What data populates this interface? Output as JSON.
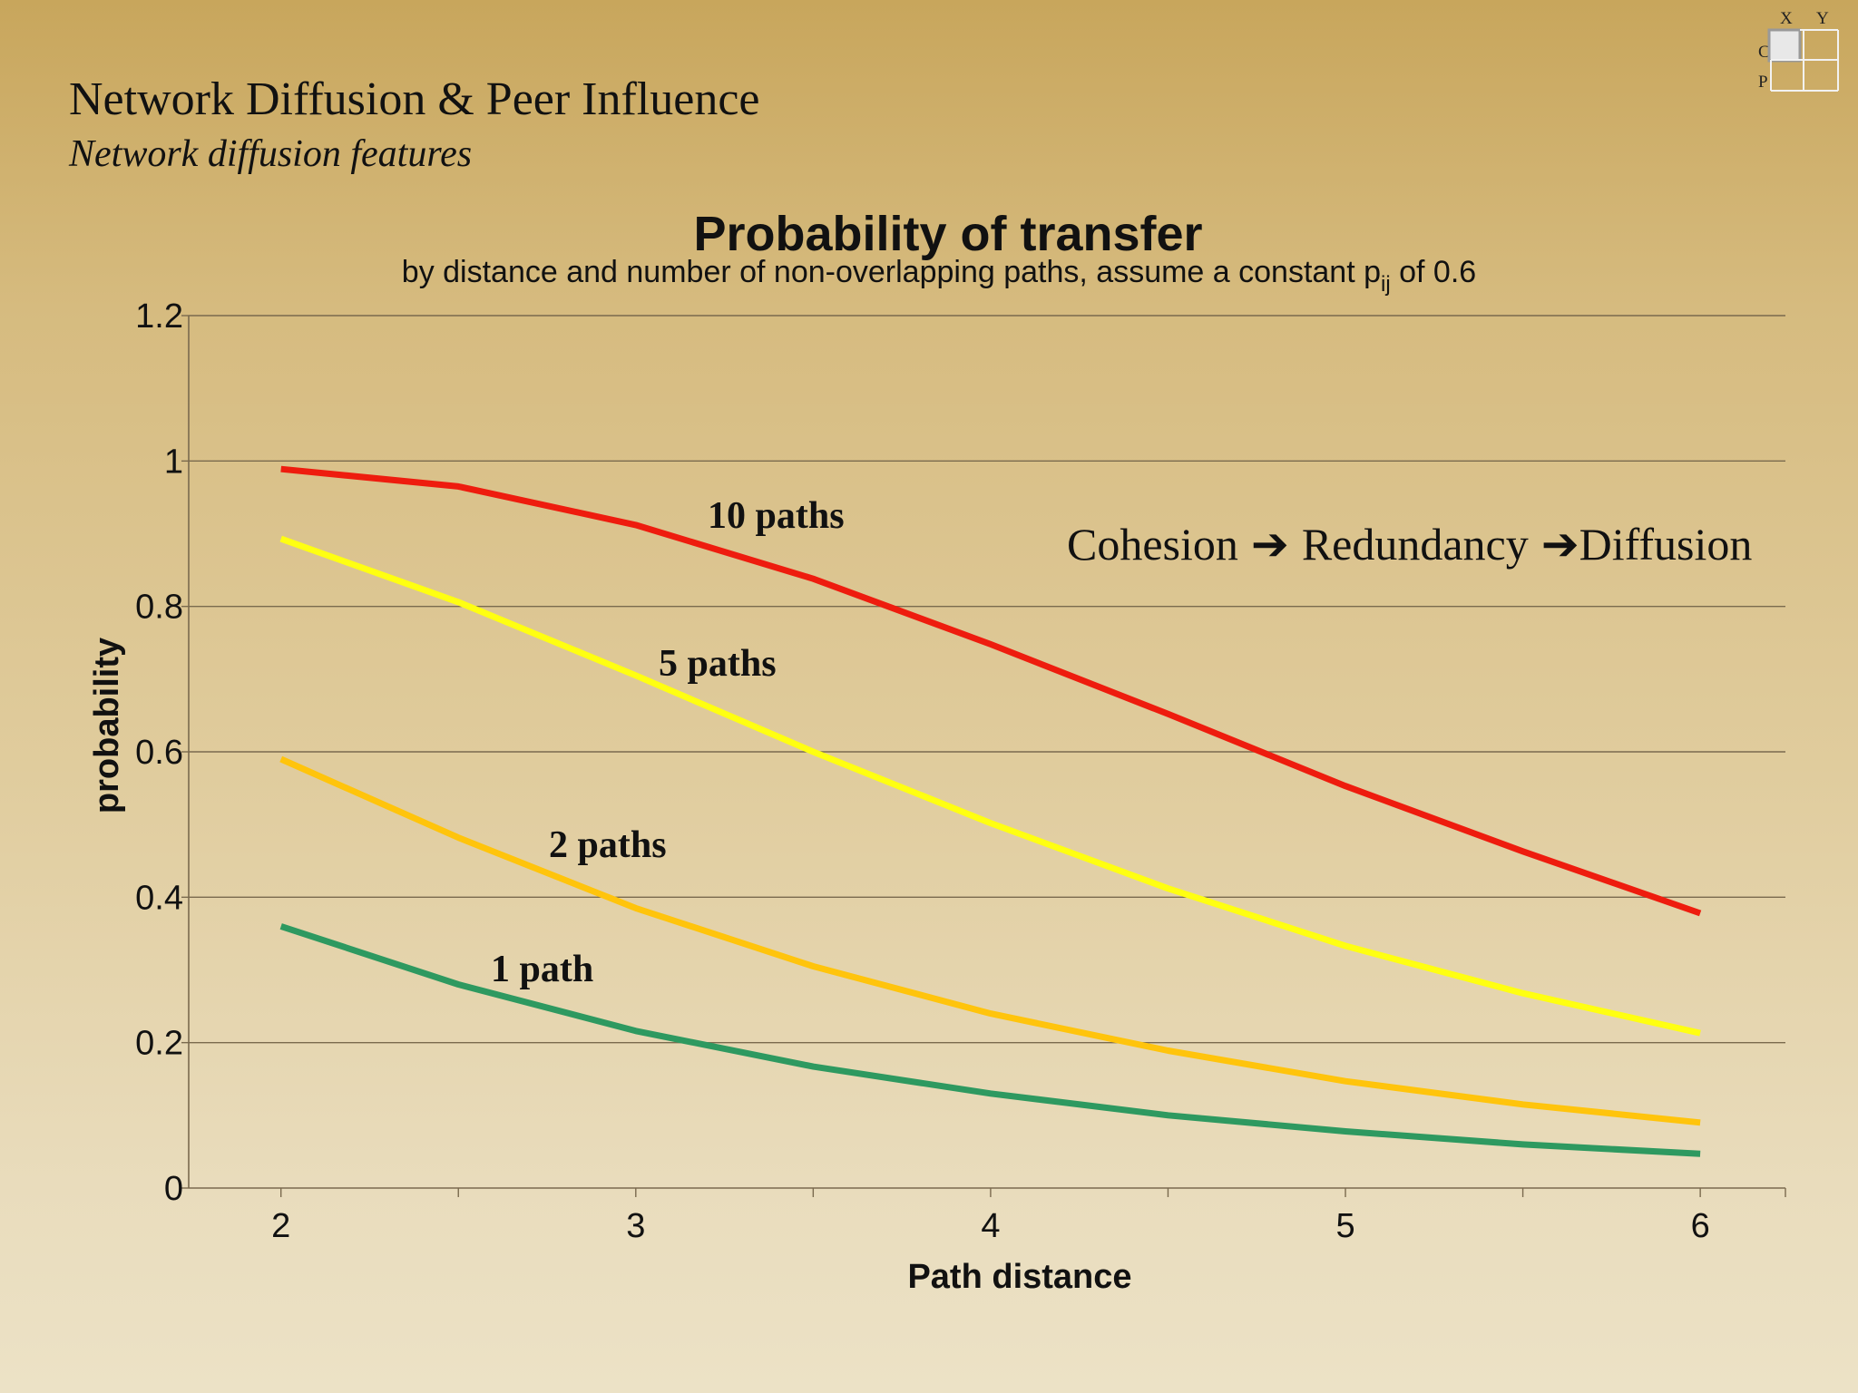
{
  "slide": {
    "title": "Network Diffusion & Peer Influence",
    "subtitle": "Network diffusion features"
  },
  "logo": {
    "x": "X",
    "y": "Y",
    "c": "C",
    "p": "P"
  },
  "annotation": {
    "cohesion": "Cohesion",
    "redundancy": "Redundancy",
    "diffusion": "Diffusion",
    "arrow": "➔"
  },
  "chart_data": {
    "type": "line",
    "title": "Probability of transfer",
    "subtitle_before": "by distance and number of non-overlapping paths, assume a constant p",
    "subtitle_subscript": "ij",
    "subtitle_after": " of 0.6",
    "xlabel": "Path distance",
    "ylabel": "probability",
    "xlim": [
      1.74,
      6.24
    ],
    "ylim": [
      0,
      1.2
    ],
    "x_ticks": [
      2,
      3,
      4,
      5,
      6
    ],
    "y_ticks": [
      0,
      0.2,
      0.4,
      0.6,
      0.8,
      1,
      1.2
    ],
    "y_tick_labels": [
      "0",
      "0.2",
      "0.4",
      "0.6",
      "0.8",
      "1",
      "1.2"
    ],
    "x": [
      2,
      2.5,
      3,
      3.5,
      4,
      4.5,
      5,
      5.5,
      6
    ],
    "grid": true,
    "series": [
      {
        "name": "10 paths",
        "color": "#ee1c0e",
        "values": [
          0.989,
          0.965,
          0.912,
          0.838,
          0.748,
          0.652,
          0.553,
          0.463,
          0.378
        ]
      },
      {
        "name": "5 paths",
        "color": "#ffff11",
        "values": [
          0.893,
          0.806,
          0.705,
          0.6,
          0.502,
          0.412,
          0.333,
          0.268,
          0.213
        ]
      },
      {
        "name": "2 paths",
        "color": "#ffc40c",
        "values": [
          0.59,
          0.482,
          0.385,
          0.305,
          0.24,
          0.189,
          0.147,
          0.115,
          0.09
        ]
      },
      {
        "name": "1 path",
        "color": "#2e9960",
        "values": [
          0.36,
          0.28,
          0.216,
          0.167,
          0.13,
          0.1,
          0.078,
          0.06,
          0.047
        ]
      }
    ]
  }
}
